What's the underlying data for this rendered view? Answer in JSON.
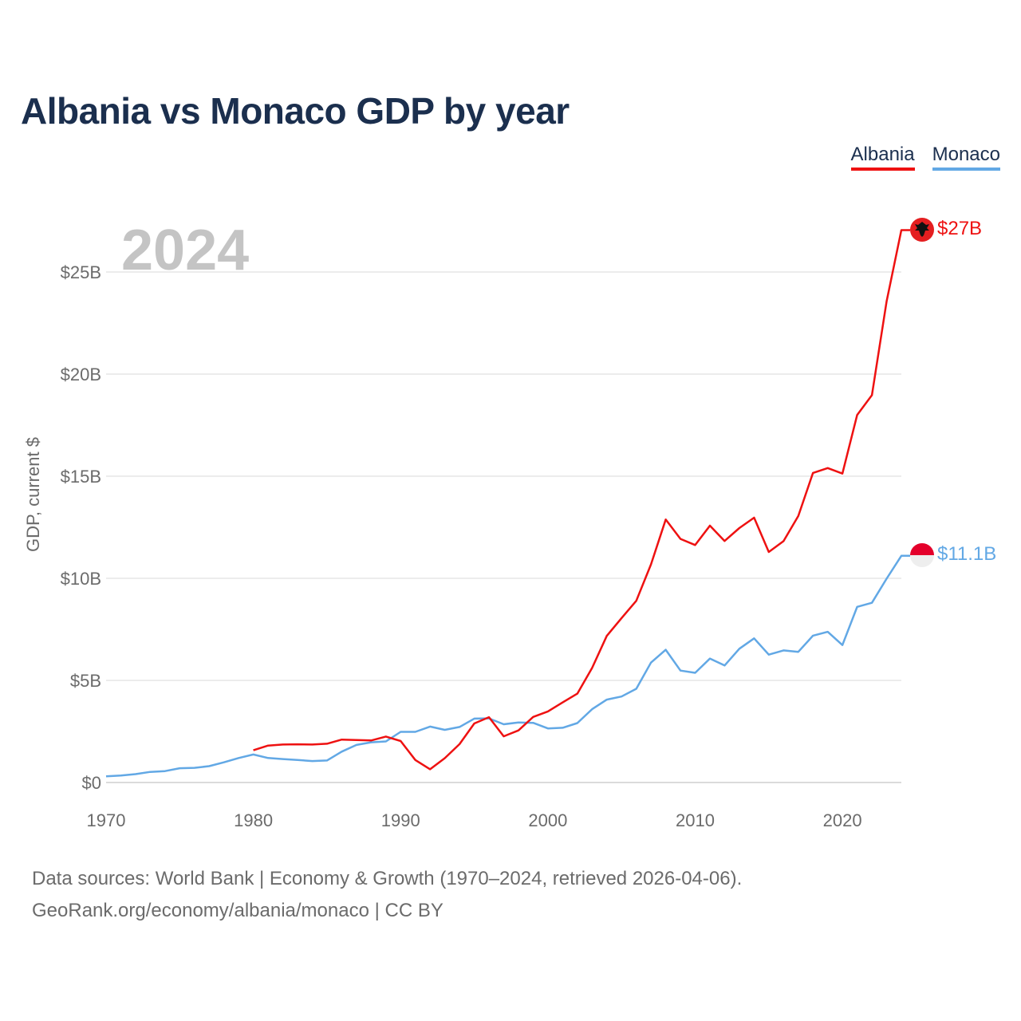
{
  "chart_data": {
    "type": "line",
    "title": "Albania vs Monaco GDP by year",
    "ylabel": "GDP, current $",
    "xlabel": "",
    "year_watermark": "2024",
    "xlim": [
      1970,
      2024
    ],
    "ylim": [
      0,
      27
    ],
    "y_ticks": [
      {
        "value": 0,
        "label": "$0"
      },
      {
        "value": 5,
        "label": "$5B"
      },
      {
        "value": 10,
        "label": "$10B"
      },
      {
        "value": 15,
        "label": "$15B"
      },
      {
        "value": 20,
        "label": "$20B"
      },
      {
        "value": 25,
        "label": "$25B"
      }
    ],
    "x_ticks": [
      {
        "value": 1970,
        "label": "1970"
      },
      {
        "value": 1980,
        "label": "1980"
      },
      {
        "value": 1990,
        "label": "1990"
      },
      {
        "value": 2000,
        "label": "2000"
      },
      {
        "value": 2010,
        "label": "2010"
      },
      {
        "value": 2020,
        "label": "2020"
      }
    ],
    "grid": true,
    "legend_position": "top-right",
    "series": [
      {
        "name": "Albania",
        "color": "#ee1111",
        "end_label": "$27B",
        "flag_icon": "albania-flag-icon",
        "x": [
          1980,
          1981,
          1982,
          1983,
          1984,
          1985,
          1986,
          1987,
          1988,
          1989,
          1990,
          1991,
          1992,
          1993,
          1994,
          1995,
          1996,
          1997,
          1998,
          1999,
          2000,
          2001,
          2002,
          2003,
          2004,
          2005,
          2006,
          2007,
          2008,
          2009,
          2010,
          2011,
          2012,
          2013,
          2014,
          2015,
          2016,
          2017,
          2018,
          2019,
          2020,
          2021,
          2022,
          2023,
          2024
        ],
        "values": [
          1.58,
          1.81,
          1.86,
          1.87,
          1.86,
          1.9,
          2.1,
          2.08,
          2.06,
          2.25,
          2.03,
          1.1,
          0.65,
          1.19,
          1.88,
          2.89,
          3.2,
          2.26,
          2.55,
          3.21,
          3.48,
          3.92,
          4.35,
          5.61,
          7.18,
          8.05,
          8.9,
          10.68,
          12.88,
          11.93,
          11.63,
          12.58,
          11.83,
          12.46,
          12.97,
          11.29,
          11.82,
          13.05,
          15.16,
          15.4,
          15.13,
          18.0,
          18.97,
          23.56,
          27.05
        ]
      },
      {
        "name": "Monaco",
        "color": "#62a8e5",
        "end_label": "$11.1B",
        "flag_icon": "monaco-flag-icon",
        "x": [
          1970,
          1971,
          1972,
          1973,
          1974,
          1975,
          1976,
          1977,
          1978,
          1979,
          1980,
          1981,
          1982,
          1983,
          1984,
          1985,
          1986,
          1987,
          1988,
          1989,
          1990,
          1991,
          1992,
          1993,
          1994,
          1995,
          1996,
          1997,
          1998,
          1999,
          2000,
          2001,
          2002,
          2003,
          2004,
          2005,
          2006,
          2007,
          2008,
          2009,
          2010,
          2011,
          2012,
          2013,
          2014,
          2015,
          2016,
          2017,
          2018,
          2019,
          2020,
          2021,
          2022,
          2023,
          2024
        ],
        "values": [
          0.3,
          0.34,
          0.41,
          0.52,
          0.56,
          0.7,
          0.72,
          0.8,
          0.99,
          1.2,
          1.37,
          1.2,
          1.15,
          1.1,
          1.05,
          1.08,
          1.51,
          1.84,
          1.97,
          2.01,
          2.48,
          2.48,
          2.74,
          2.58,
          2.72,
          3.13,
          3.14,
          2.85,
          2.94,
          2.92,
          2.65,
          2.68,
          2.91,
          3.59,
          4.06,
          4.21,
          4.59,
          5.87,
          6.5,
          5.48,
          5.37,
          6.07,
          5.73,
          6.55,
          7.06,
          6.26,
          6.47,
          6.4,
          7.19,
          7.38,
          6.73,
          8.6,
          8.8,
          9.98,
          11.1
        ]
      }
    ]
  },
  "legend": {
    "items": [
      {
        "label": "Albania",
        "color": "#ee1111"
      },
      {
        "label": "Monaco",
        "color": "#62a8e5"
      }
    ]
  },
  "sources": {
    "line1": "Data sources: World Bank | Economy & Growth (1970–2024, retrieved 2026-04-06).",
    "line2": "GeoRank.org/economy/albania/monaco | CC BY"
  }
}
